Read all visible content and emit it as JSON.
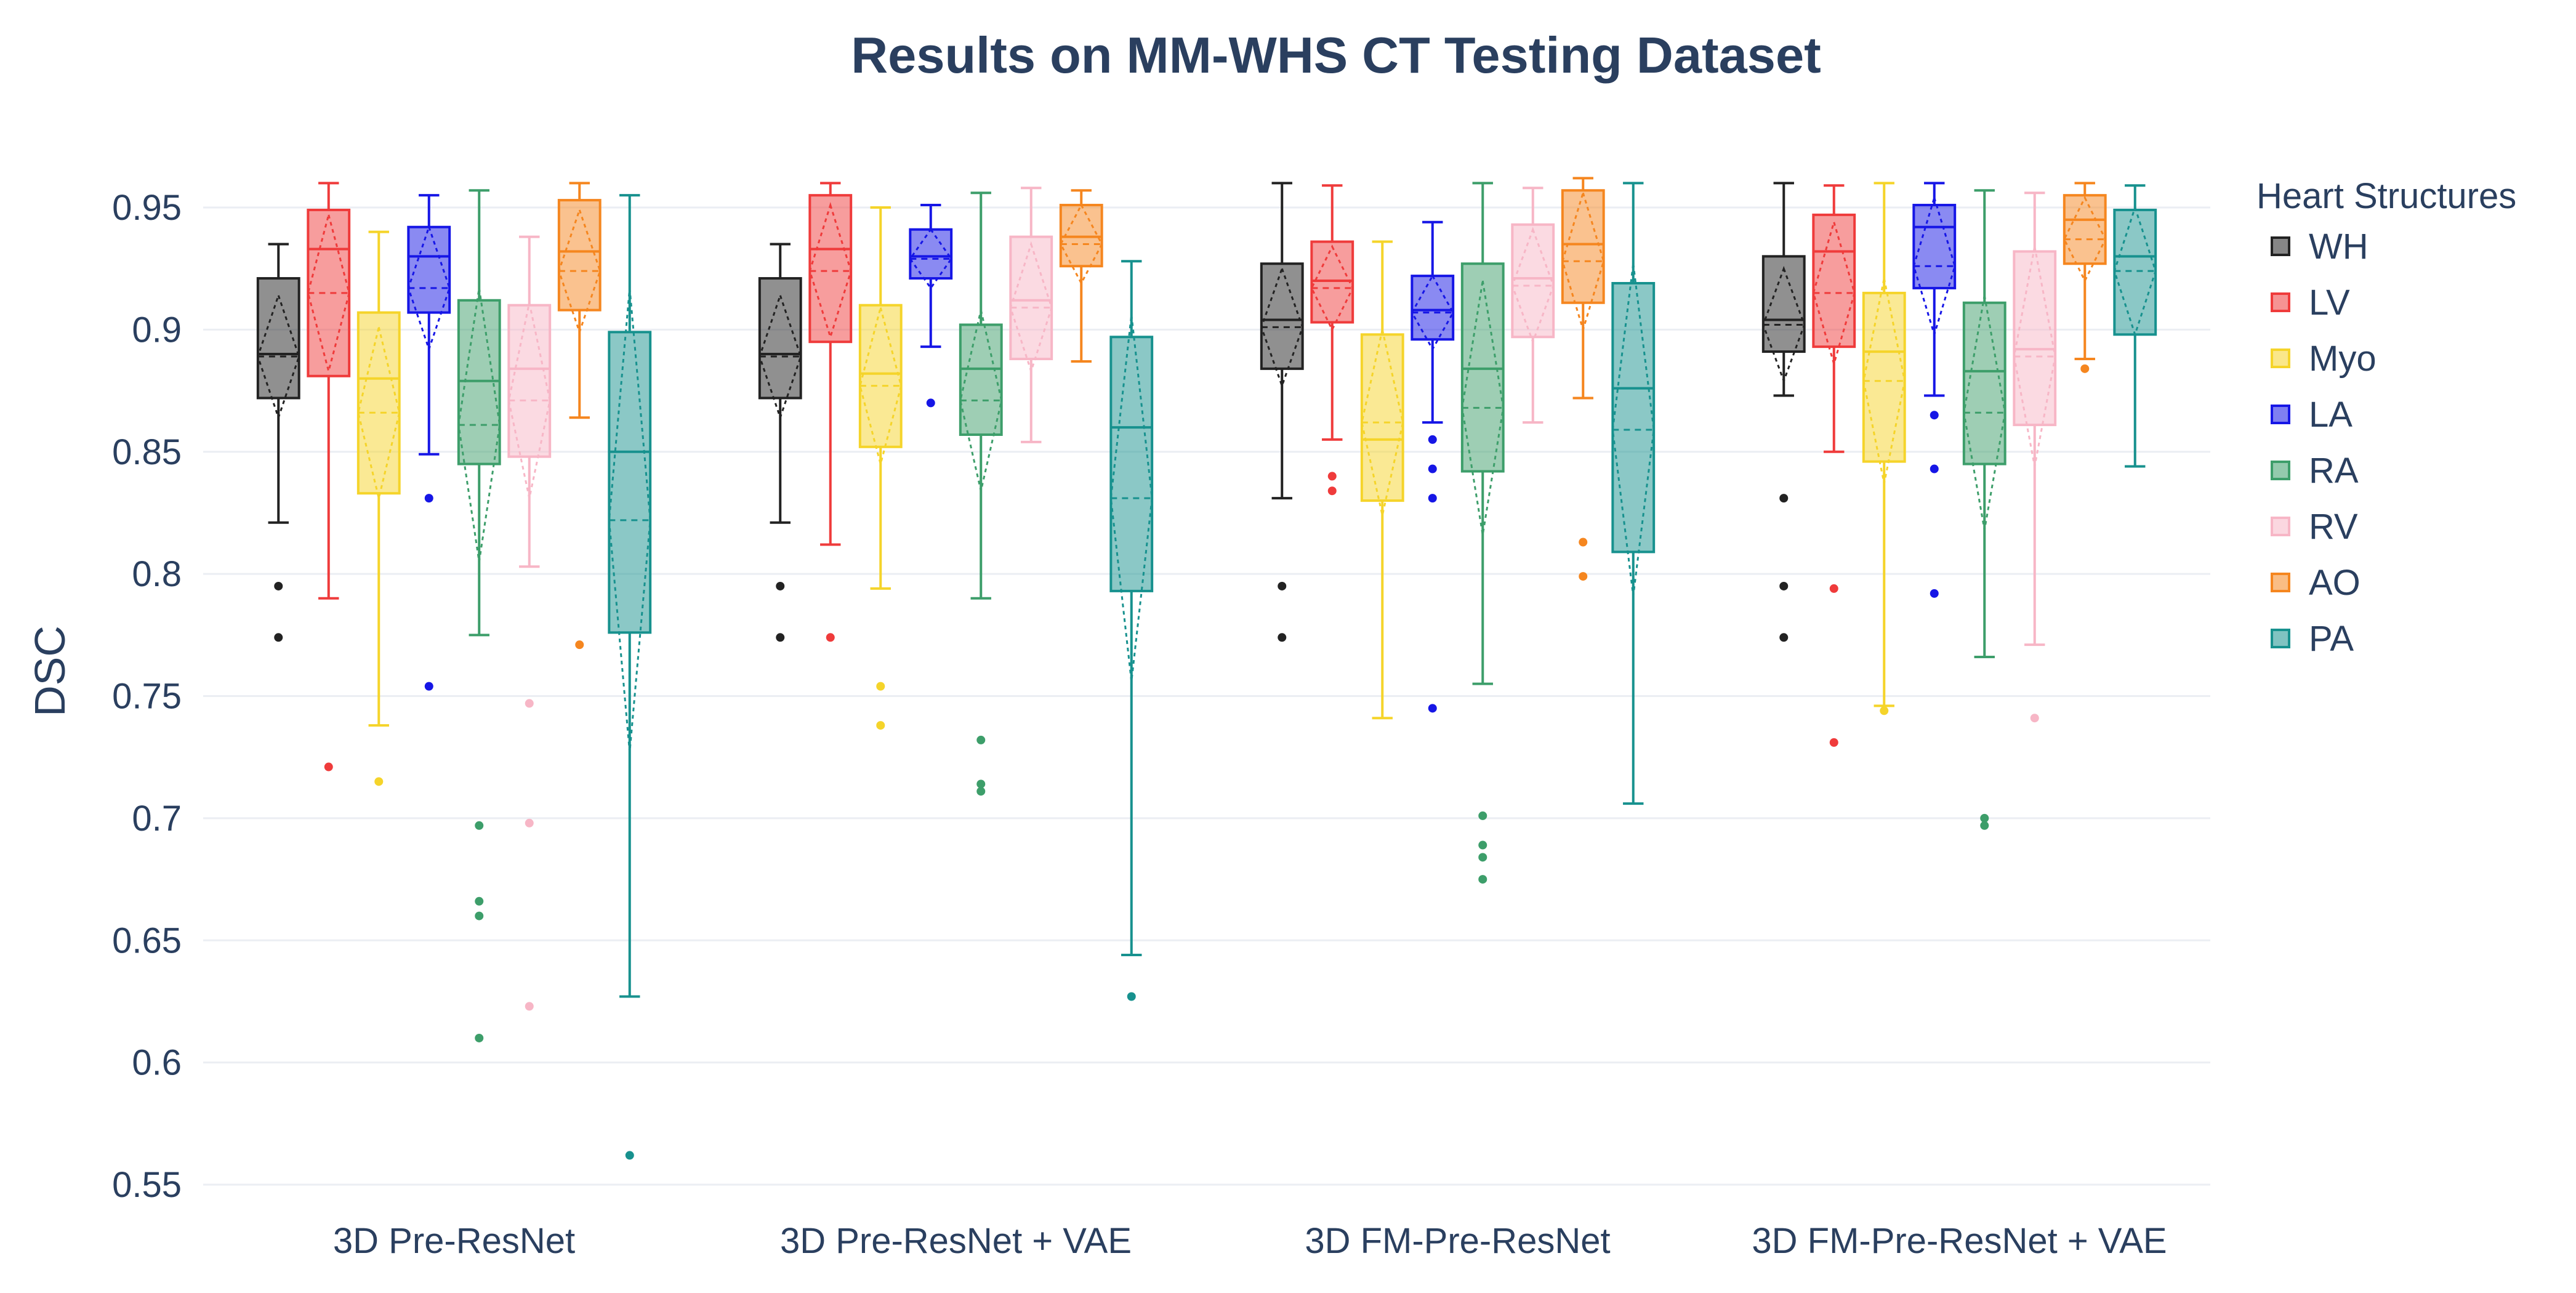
{
  "chart_data": {
    "type": "box",
    "title": "Results on MM-WHS CT Testing Dataset",
    "xlabel": "",
    "ylabel": "DSC",
    "ylim": [
      0.535,
      0.97
    ],
    "yticks": [
      0.55,
      0.6,
      0.65,
      0.7,
      0.75,
      0.8,
      0.85,
      0.9,
      0.95
    ],
    "ytick_labels": [
      "0.55",
      "0.6",
      "0.65",
      "0.7",
      "0.75",
      "0.8",
      "0.85",
      "0.9",
      "0.95"
    ],
    "grid": true,
    "legend_title": "Heart Structures",
    "legend_position": "top-right",
    "categories": [
      "3D Pre-ResNet",
      "3D Pre-ResNet + VAE",
      "3D FM-Pre-ResNet",
      "3D FM-Pre-ResNet + VAE"
    ],
    "series": [
      {
        "name": "WH",
        "color": "#222222",
        "boxes": [
          {
            "q1": 0.872,
            "median": 0.89,
            "q3": 0.921,
            "lower": 0.821,
            "upper": 0.935,
            "mean": 0.889,
            "sd": 0.025,
            "outliers": [
              0.795,
              0.774
            ]
          },
          {
            "q1": 0.872,
            "median": 0.89,
            "q3": 0.921,
            "lower": 0.821,
            "upper": 0.935,
            "mean": 0.889,
            "sd": 0.025,
            "outliers": [
              0.795,
              0.774
            ]
          },
          {
            "q1": 0.884,
            "median": 0.904,
            "q3": 0.927,
            "lower": 0.831,
            "upper": 0.96,
            "mean": 0.901,
            "sd": 0.024,
            "outliers": [
              0.795,
              0.774
            ]
          },
          {
            "q1": 0.891,
            "median": 0.904,
            "q3": 0.93,
            "lower": 0.873,
            "upper": 0.96,
            "mean": 0.902,
            "sd": 0.023,
            "outliers": [
              0.831,
              0.795,
              0.774
            ]
          }
        ]
      },
      {
        "name": "LV",
        "color": "#ef3b3b",
        "boxes": [
          {
            "q1": 0.881,
            "median": 0.933,
            "q3": 0.949,
            "lower": 0.79,
            "upper": 0.96,
            "mean": 0.915,
            "sd": 0.032,
            "outliers": [
              0.721
            ]
          },
          {
            "q1": 0.895,
            "median": 0.933,
            "q3": 0.955,
            "lower": 0.812,
            "upper": 0.96,
            "mean": 0.924,
            "sd": 0.027,
            "outliers": [
              0.774
            ]
          },
          {
            "q1": 0.903,
            "median": 0.92,
            "q3": 0.936,
            "lower": 0.855,
            "upper": 0.959,
            "mean": 0.917,
            "sd": 0.017,
            "outliers": [
              0.84,
              0.834
            ]
          },
          {
            "q1": 0.893,
            "median": 0.932,
            "q3": 0.947,
            "lower": 0.85,
            "upper": 0.959,
            "mean": 0.915,
            "sd": 0.029,
            "outliers": [
              0.794,
              0.731
            ]
          }
        ]
      },
      {
        "name": "Myo",
        "color": "#f5d42a",
        "boxes": [
          {
            "q1": 0.833,
            "median": 0.88,
            "q3": 0.907,
            "lower": 0.738,
            "upper": 0.94,
            "mean": 0.866,
            "sd": 0.035,
            "outliers": [
              0.715
            ]
          },
          {
            "q1": 0.852,
            "median": 0.882,
            "q3": 0.91,
            "lower": 0.794,
            "upper": 0.95,
            "mean": 0.877,
            "sd": 0.032,
            "outliers": [
              0.754,
              0.738
            ]
          },
          {
            "q1": 0.83,
            "median": 0.855,
            "q3": 0.898,
            "lower": 0.741,
            "upper": 0.936,
            "mean": 0.862,
            "sd": 0.038,
            "outliers": []
          },
          {
            "q1": 0.846,
            "median": 0.891,
            "q3": 0.915,
            "lower": 0.746,
            "upper": 0.96,
            "mean": 0.879,
            "sd": 0.042,
            "outliers": [
              0.744
            ]
          }
        ]
      },
      {
        "name": "LA",
        "color": "#1616e6",
        "boxes": [
          {
            "q1": 0.907,
            "median": 0.93,
            "q3": 0.942,
            "lower": 0.849,
            "upper": 0.955,
            "mean": 0.917,
            "sd": 0.025,
            "outliers": [
              0.831,
              0.754
            ]
          },
          {
            "q1": 0.921,
            "median": 0.93,
            "q3": 0.941,
            "lower": 0.893,
            "upper": 0.951,
            "mean": 0.929,
            "sd": 0.012,
            "outliers": [
              0.87
            ]
          },
          {
            "q1": 0.896,
            "median": 0.908,
            "q3": 0.922,
            "lower": 0.862,
            "upper": 0.944,
            "mean": 0.907,
            "sd": 0.015,
            "outliers": [
              0.855,
              0.843,
              0.831,
              0.745
            ]
          },
          {
            "q1": 0.917,
            "median": 0.942,
            "q3": 0.951,
            "lower": 0.873,
            "upper": 0.96,
            "mean": 0.926,
            "sd": 0.028,
            "outliers": [
              0.865,
              0.843,
              0.792
            ]
          }
        ]
      },
      {
        "name": "RA",
        "color": "#3d9e6a",
        "boxes": [
          {
            "q1": 0.845,
            "median": 0.879,
            "q3": 0.912,
            "lower": 0.775,
            "upper": 0.957,
            "mean": 0.861,
            "sd": 0.056,
            "outliers": [
              0.697,
              0.666,
              0.66,
              0.61
            ]
          },
          {
            "q1": 0.857,
            "median": 0.884,
            "q3": 0.902,
            "lower": 0.79,
            "upper": 0.956,
            "mean": 0.871,
            "sd": 0.037,
            "outliers": [
              0.732,
              0.714,
              0.711
            ]
          },
          {
            "q1": 0.842,
            "median": 0.884,
            "q3": 0.927,
            "lower": 0.755,
            "upper": 0.96,
            "mean": 0.868,
            "sd": 0.052,
            "outliers": [
              0.701,
              0.689,
              0.684,
              0.675
            ]
          },
          {
            "q1": 0.845,
            "median": 0.883,
            "q3": 0.911,
            "lower": 0.766,
            "upper": 0.957,
            "mean": 0.866,
            "sd": 0.048,
            "outliers": [
              0.7,
              0.697
            ]
          }
        ]
      },
      {
        "name": "RV",
        "color": "#f7b6c6",
        "boxes": [
          {
            "q1": 0.848,
            "median": 0.884,
            "q3": 0.91,
            "lower": 0.803,
            "upper": 0.938,
            "mean": 0.871,
            "sd": 0.04,
            "outliers": [
              0.747,
              0.698,
              0.623
            ]
          },
          {
            "q1": 0.888,
            "median": 0.912,
            "q3": 0.938,
            "lower": 0.854,
            "upper": 0.958,
            "mean": 0.909,
            "sd": 0.026,
            "outliers": []
          },
          {
            "q1": 0.897,
            "median": 0.921,
            "q3": 0.943,
            "lower": 0.862,
            "upper": 0.958,
            "mean": 0.918,
            "sd": 0.023,
            "outliers": []
          },
          {
            "q1": 0.861,
            "median": 0.892,
            "q3": 0.932,
            "lower": 0.771,
            "upper": 0.956,
            "mean": 0.889,
            "sd": 0.045,
            "outliers": [
              0.741
            ]
          }
        ]
      },
      {
        "name": "AO",
        "color": "#f5861f",
        "boxes": [
          {
            "q1": 0.908,
            "median": 0.932,
            "q3": 0.953,
            "lower": 0.864,
            "upper": 0.96,
            "mean": 0.924,
            "sd": 0.025,
            "outliers": [
              0.771
            ]
          },
          {
            "q1": 0.926,
            "median": 0.938,
            "q3": 0.951,
            "lower": 0.887,
            "upper": 0.957,
            "mean": 0.935,
            "sd": 0.016,
            "outliers": []
          },
          {
            "q1": 0.911,
            "median": 0.935,
            "q3": 0.957,
            "lower": 0.872,
            "upper": 0.962,
            "mean": 0.928,
            "sd": 0.028,
            "outliers": [
              0.813,
              0.799
            ]
          },
          {
            "q1": 0.927,
            "median": 0.945,
            "q3": 0.955,
            "lower": 0.888,
            "upper": 0.96,
            "mean": 0.937,
            "sd": 0.017,
            "outliers": [
              0.884
            ]
          }
        ]
      },
      {
        "name": "PA",
        "color": "#17918e",
        "boxes": [
          {
            "q1": 0.776,
            "median": 0.85,
            "q3": 0.899,
            "lower": 0.627,
            "upper": 0.955,
            "mean": 0.822,
            "sd": 0.095,
            "outliers": [
              0.562
            ]
          },
          {
            "q1": 0.793,
            "median": 0.86,
            "q3": 0.897,
            "lower": 0.644,
            "upper": 0.928,
            "mean": 0.831,
            "sd": 0.075,
            "outliers": [
              0.627
            ]
          },
          {
            "q1": 0.809,
            "median": 0.876,
            "q3": 0.919,
            "lower": 0.706,
            "upper": 0.96,
            "mean": 0.859,
            "sd": 0.068,
            "outliers": []
          },
          {
            "q1": 0.898,
            "median": 0.93,
            "q3": 0.949,
            "lower": 0.844,
            "upper": 0.959,
            "mean": 0.924,
            "sd": 0.026,
            "outliers": []
          }
        ]
      }
    ]
  }
}
